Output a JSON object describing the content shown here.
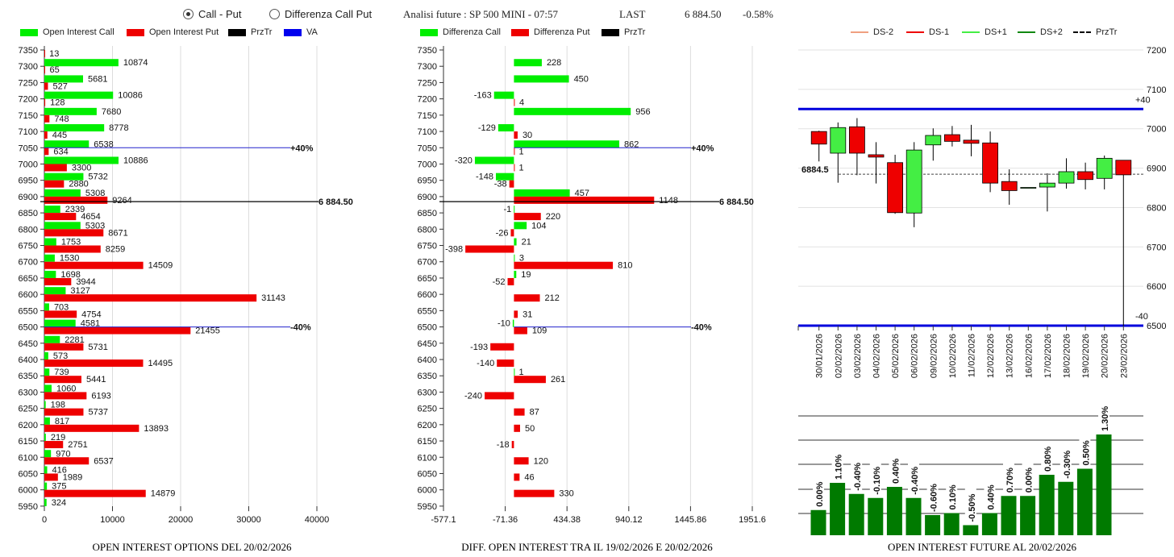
{
  "header": {
    "mode_options": [
      {
        "label": "Call - Put",
        "selected": true
      },
      {
        "label": "Differenza Call Put",
        "selected": false
      }
    ],
    "title": "Analisi future : SP 500 MINI - 07:57",
    "last_label": "LAST",
    "last_value": "6 884.50",
    "change": "-0.58%"
  },
  "colors": {
    "call": "#00ee00",
    "put": "#ee0000",
    "przTr": "#000000",
    "va": "#0000cc",
    "ds_minus2": "#f0a080",
    "ds_minus1": "#ee0000",
    "ds_plus1": "#44ee44",
    "ds_plus2": "#118811",
    "future_bar": "#007a00"
  },
  "chart_data": [
    {
      "type": "bar",
      "orientation": "horizontal",
      "title": "OPEN INTEREST OPTIONS DEL 20/02/2026",
      "legend": [
        "Open Interest Call",
        "Open Interest Put",
        "PrzTr",
        "VA"
      ],
      "legend_placement": "top",
      "categories": [
        7350,
        7300,
        7250,
        7200,
        7150,
        7100,
        7050,
        7000,
        6950,
        6900,
        6850,
        6800,
        6750,
        6700,
        6650,
        6600,
        6550,
        6500,
        6450,
        6400,
        6350,
        6300,
        6250,
        6200,
        6150,
        6100,
        6050,
        6000,
        5950
      ],
      "series": [
        {
          "name": "Open Interest Call",
          "values": [
            null,
            10874,
            5681,
            10086,
            7680,
            8778,
            6538,
            10886,
            5732,
            5308,
            2339,
            5303,
            1753,
            1530,
            1698,
            3127,
            703,
            4581,
            2281,
            573,
            739,
            1060,
            198,
            817,
            219,
            970,
            416,
            375,
            324
          ]
        },
        {
          "name": "Open Interest Put",
          "values": [
            13,
            65,
            527,
            128,
            748,
            445,
            634,
            3300,
            2880,
            9264,
            4654,
            8671,
            8259,
            14509,
            3944,
            31143,
            4754,
            21455,
            5731,
            14495,
            5441,
            6193,
            5737,
            13893,
            2751,
            6537,
            1989,
            14879,
            null
          ]
        }
      ],
      "xlim": [
        0,
        40000
      ],
      "xticks": [
        "0",
        "10000",
        "20000",
        "30000",
        "40000"
      ],
      "grid": true,
      "reference_lines": [
        {
          "strike": 7050,
          "label": "+40%",
          "color": "#2222cc"
        },
        {
          "strike": 6884.5,
          "label": "6 884.50",
          "color": "#000000"
        },
        {
          "strike": 6500,
          "label": "-40%",
          "color": "#2222cc"
        }
      ]
    },
    {
      "type": "bar",
      "orientation": "horizontal",
      "title": "DIFF. OPEN INTEREST TRA IL 19/02/2026 E 20/02/2026",
      "legend": [
        "Differenza Call",
        "Differenza Put",
        "PrzTr"
      ],
      "legend_placement": "top",
      "categories": [
        7350,
        7300,
        7250,
        7200,
        7150,
        7100,
        7050,
        7000,
        6950,
        6900,
        6850,
        6800,
        6750,
        6700,
        6650,
        6600,
        6550,
        6500,
        6450,
        6400,
        6350,
        6300,
        6250,
        6200,
        6150,
        6100,
        6050,
        6000,
        5950
      ],
      "series": [
        {
          "name": "Differenza Call",
          "values": [
            null,
            228,
            450,
            -163,
            956,
            -129,
            862,
            -320,
            -148,
            457,
            -1,
            104,
            21,
            3,
            19,
            null,
            null,
            -10,
            null,
            null,
            1,
            null,
            null,
            null,
            null,
            null,
            null,
            null,
            null
          ]
        },
        {
          "name": "Differenza Put",
          "values": [
            null,
            null,
            null,
            4,
            null,
            30,
            1,
            1,
            -38,
            1148,
            220,
            -26,
            -398,
            810,
            -52,
            212,
            31,
            109,
            -193,
            -140,
            261,
            -240,
            87,
            50,
            -18,
            120,
            46,
            330,
            null
          ]
        }
      ],
      "xlim": [
        -577.1,
        1951.6
      ],
      "xticks": [
        "-577.1",
        "-71.36",
        "434.38",
        "940.12",
        "1445.86",
        "1951.6"
      ],
      "grid": true,
      "reference_lines": [
        {
          "strike": 7050,
          "label": "+40%",
          "color": "#2222cc"
        },
        {
          "strike": 6884.5,
          "label": "6 884.50",
          "color": "#000000"
        },
        {
          "strike": 6500,
          "label": "-40%",
          "color": "#2222cc"
        }
      ]
    },
    {
      "type": "candlestick",
      "legend": [
        "DS-2",
        "DS-1",
        "DS+1",
        "DS+2",
        "PrzTr"
      ],
      "legend_placement": "top",
      "ylim": [
        6500,
        7200
      ],
      "yticks": [
        "7200",
        "7100",
        "7000",
        "6900",
        "6800",
        "6700",
        "6600",
        "6500"
      ],
      "grid": true,
      "price_marker": "6884.5",
      "przTr": 6884.5,
      "bands": [
        {
          "value": 7050,
          "label": "+40"
        },
        {
          "value": 6500,
          "label": "-40"
        }
      ],
      "candles": [
        {
          "date": "30/01/2026",
          "open": 6993,
          "high": 6995,
          "low": 6917,
          "close": 6961
        },
        {
          "date": "02/02/2026",
          "open": 6938,
          "high": 7016,
          "low": 6863,
          "close": 7003
        },
        {
          "date": "03/02/2026",
          "open": 7005,
          "high": 7027,
          "low": 6882,
          "close": 6938
        },
        {
          "date": "04/02/2026",
          "open": 6934,
          "high": 6966,
          "low": 6861,
          "close": 6928
        },
        {
          "date": "05/02/2026",
          "open": 6914,
          "high": 6934,
          "low": 6784,
          "close": 6787
        },
        {
          "date": "06/02/2026",
          "open": 6786,
          "high": 6966,
          "low": 6750,
          "close": 6946
        },
        {
          "date": "09/02/2026",
          "open": 6959,
          "high": 7001,
          "low": 6919,
          "close": 6983
        },
        {
          "date": "10/02/2026",
          "open": 6985,
          "high": 7007,
          "low": 6955,
          "close": 6968
        },
        {
          "date": "11/02/2026",
          "open": 6971,
          "high": 7010,
          "low": 6930,
          "close": 6963
        },
        {
          "date": "12/02/2026",
          "open": 6964,
          "high": 6993,
          "low": 6839,
          "close": 6862
        },
        {
          "date": "13/02/2026",
          "open": 6866,
          "high": 6897,
          "low": 6807,
          "close": 6843
        },
        {
          "date": "16/02/2026",
          "open": 6851,
          "high": 6851,
          "low": 6851,
          "close": 6851
        },
        {
          "date": "17/02/2026",
          "open": 6852,
          "high": 6887,
          "low": 6790,
          "close": 6862
        },
        {
          "date": "18/02/2026",
          "open": 6862,
          "high": 6925,
          "low": 6848,
          "close": 6891
        },
        {
          "date": "19/02/2026",
          "open": 6891,
          "high": 6914,
          "low": 6846,
          "close": 6871
        },
        {
          "date": "20/02/2026",
          "open": 6874,
          "high": 6932,
          "low": 6846,
          "close": 6925
        },
        {
          "date": "23/02/2026",
          "open": 6920,
          "high": 6920,
          "low": 6500,
          "close": 6883
        }
      ]
    },
    {
      "type": "bar",
      "title": "OPEN INTEREST FUTURE AL 20/02/2026",
      "grid": true,
      "labels": [
        "0.00%",
        "1.10%",
        "-0.40%",
        "-0.10%",
        "0.40%",
        "-0.40%",
        "-0.60%",
        "0.10%",
        "-0.50%",
        "0.40%",
        "0.70%",
        "0.00%",
        "0.80%",
        "-0.30%",
        "0.50%",
        "1.30%"
      ],
      "relative_levels": [
        25,
        52,
        41,
        37,
        48,
        37,
        20,
        22,
        10,
        22,
        39,
        39,
        60,
        53,
        66,
        100
      ]
    }
  ]
}
